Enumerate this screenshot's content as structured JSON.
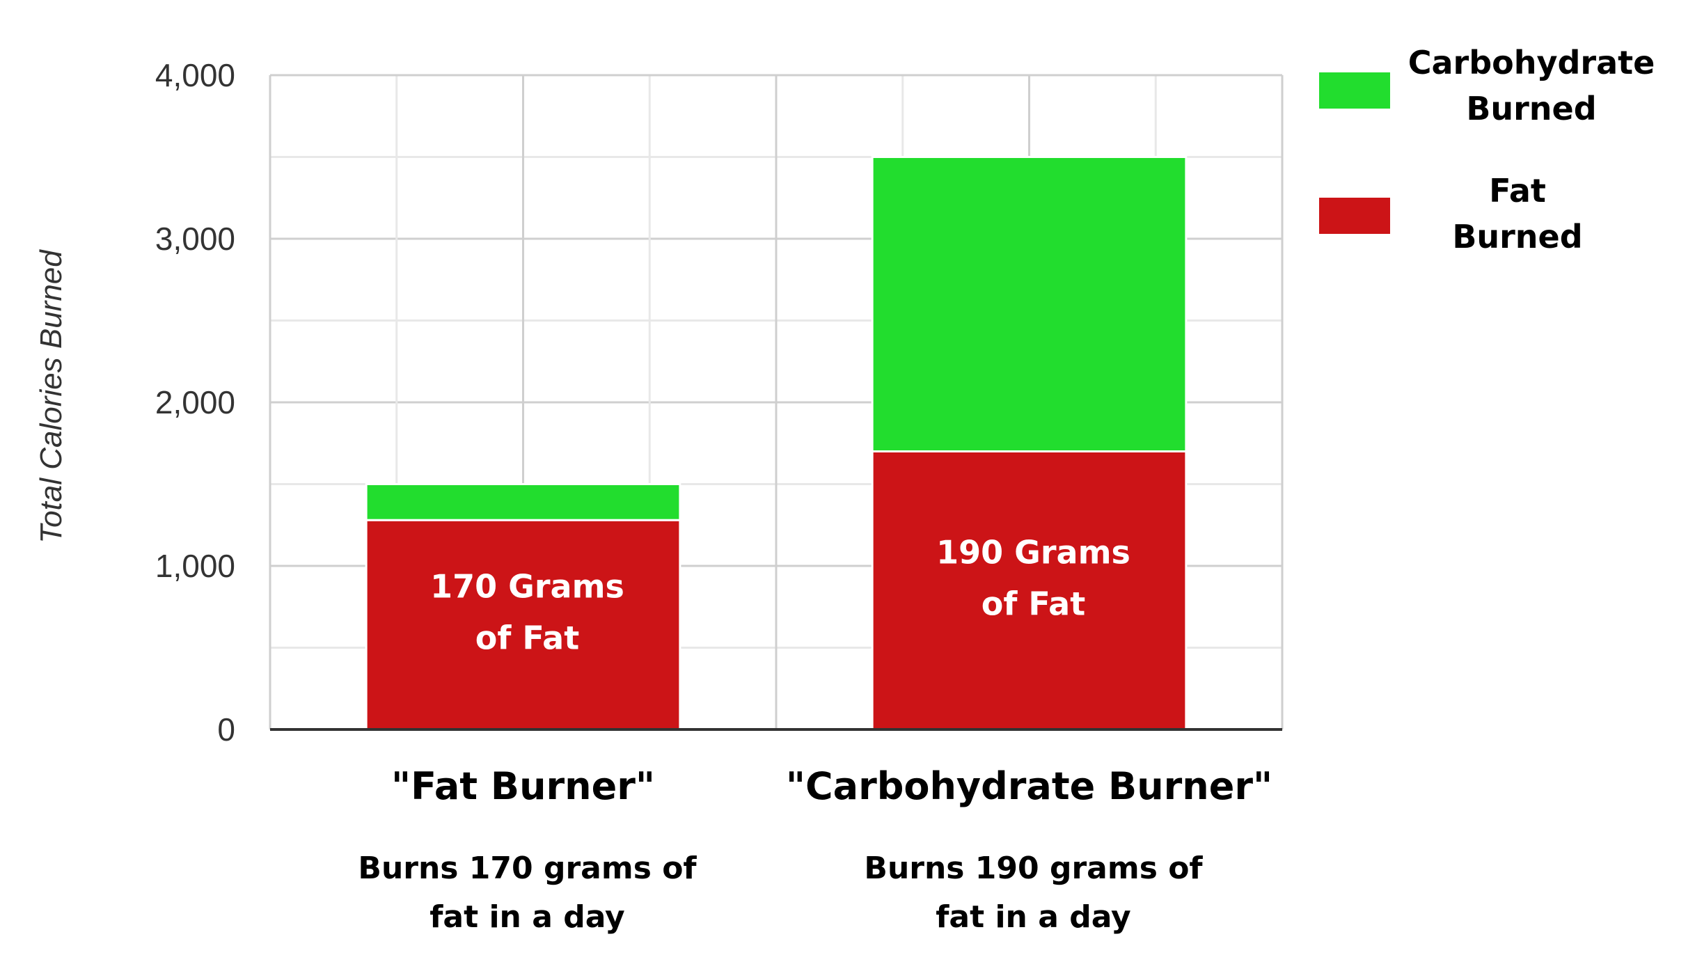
{
  "chart_data": {
    "type": "bar",
    "stacked": true,
    "categories": [
      "\"Fat Burner\"",
      "\"Carbohydrate Burner\""
    ],
    "category_notes": [
      [
        "Burns 170 grams of",
        "fat in a day"
      ],
      [
        "Burns 190 grams of",
        "fat in a day"
      ]
    ],
    "series": [
      {
        "name": "Fat Burned",
        "legend_lines": [
          "Fat",
          "Burned"
        ],
        "color": "#cc1417",
        "values": [
          1280,
          1700
        ],
        "bar_labels": [
          [
            "170 Grams",
            "of Fat"
          ],
          [
            "190 Grams",
            "of Fat"
          ]
        ]
      },
      {
        "name": "Carbohydrate Burned",
        "legend_lines": [
          "Carbohydrate",
          "Burned"
        ],
        "color": "#22dd2e",
        "values": [
          220,
          1800
        ]
      }
    ],
    "ylabel": "Total Calories Burned",
    "ylim": [
      0,
      4000
    ],
    "yticks": [
      0,
      1000,
      2000,
      3000,
      4000
    ],
    "ytick_labels": [
      "0",
      "1,000",
      "2,000",
      "3,000",
      "4,000"
    ],
    "grid": true,
    "legend_position": "top-right"
  }
}
